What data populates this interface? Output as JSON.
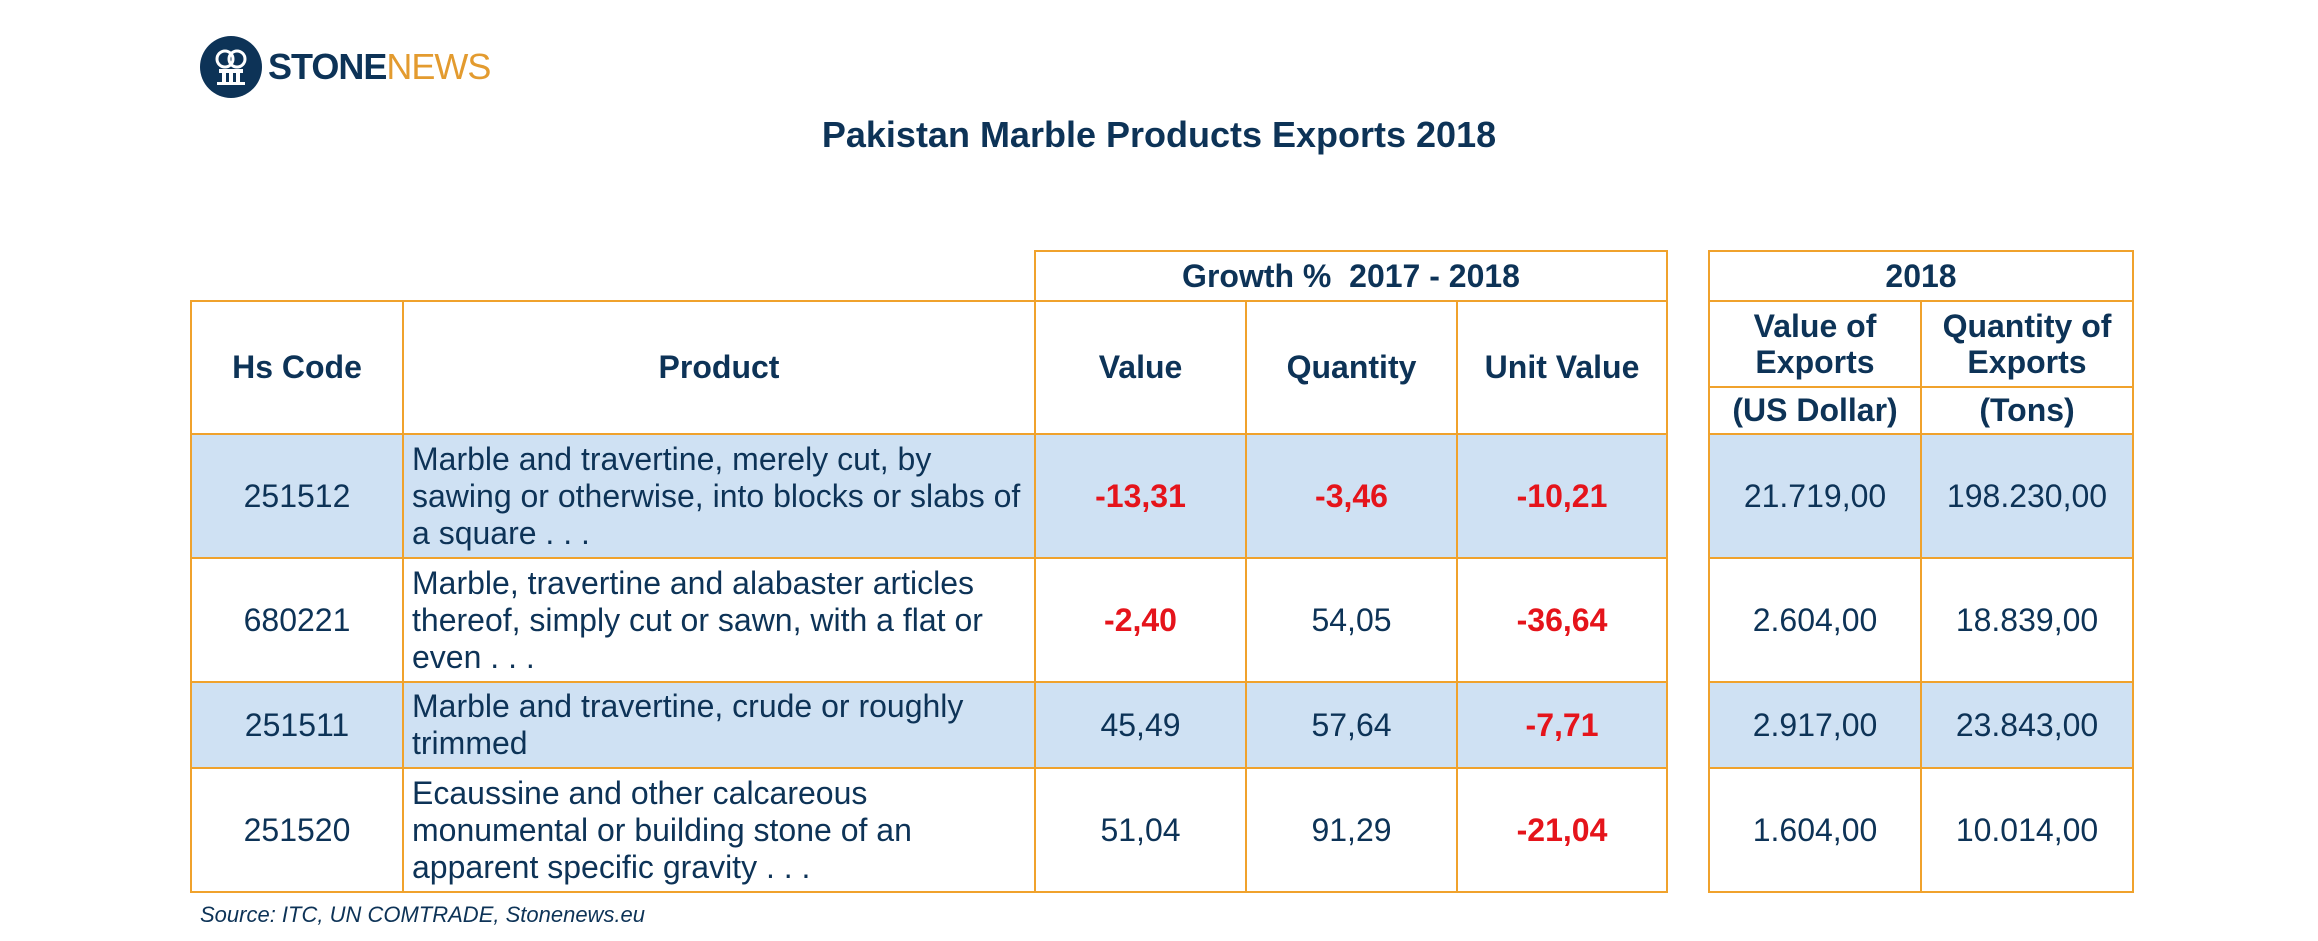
{
  "logo": {
    "text_bold": "STONE",
    "text_light": "NEWS",
    "icon": "stonenews-logo-icon"
  },
  "chart_data": {
    "type": "table",
    "title": "Pakistan Marble Products Exports 2018",
    "group_headers": {
      "growth": "Growth %  2017 - 2018",
      "year": "2018"
    },
    "columns": {
      "hs_code": "Hs Code",
      "product": "Product",
      "value": "Value",
      "quantity": "Quantity",
      "unit_value": "Unit Value",
      "export_value": "Value of Exports",
      "export_value_unit": "(US Dollar)",
      "export_quantity": "Quantity of Exports",
      "export_quantity_unit": "(Tons)"
    },
    "rows": [
      {
        "hs_code": "251512",
        "product": "Marble and travertine, merely cut, by sawing or otherwise, into blocks or slabs of a square . . .",
        "value": "-13,31",
        "quantity": "-3,46",
        "unit_value": "-10,21",
        "export_value": "21.719,00",
        "export_quantity": "198.230,00"
      },
      {
        "hs_code": "680221",
        "product": "Marble, travertine and alabaster articles thereof, simply cut or sawn, with a flat or even . . .",
        "value": "-2,40",
        "quantity": "54,05",
        "unit_value": "-36,64",
        "export_value": "2.604,00",
        "export_quantity": "18.839,00"
      },
      {
        "hs_code": "251511",
        "product": "Marble and travertine, crude or roughly trimmed",
        "value": "45,49",
        "quantity": "57,64",
        "unit_value": "-7,71",
        "export_value": "2.917,00",
        "export_quantity": "23.843,00"
      },
      {
        "hs_code": "251520",
        "product": "Ecaussine and other calcareous monumental or building stone of an apparent specific gravity . . .",
        "value": "51,04",
        "quantity": "91,29",
        "unit_value": "-21,04",
        "export_value": "1.604,00",
        "export_quantity": "10.014,00"
      }
    ],
    "negative_color": "#e5141b",
    "text_color": "#0d3357",
    "border_color": "#f0a22c",
    "shaded_row_color": "#cfe1f3"
  },
  "source": "Source: ITC, UN COMTRADE, Stonenews.eu"
}
